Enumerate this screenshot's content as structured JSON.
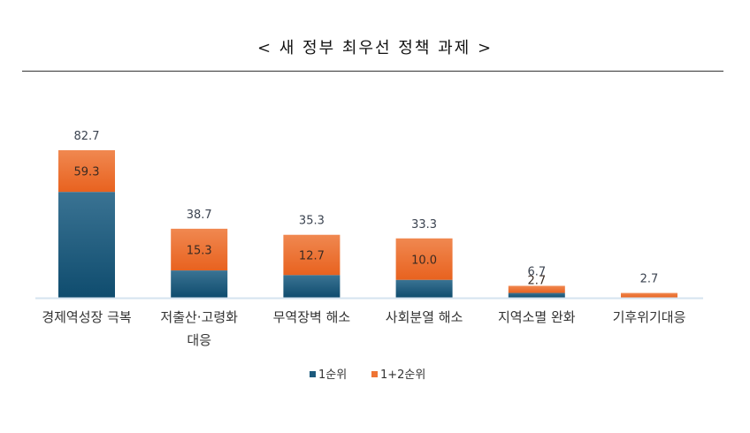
{
  "chart_data": {
    "type": "bar",
    "stacked": true,
    "title": "< 새 정부 최우선 정책 과제 >",
    "categories": [
      [
        "경제역성장 극복"
      ],
      [
        "저출산·고령화",
        "대응"
      ],
      [
        "무역장벽 해소"
      ],
      [
        "사회분열 해소"
      ],
      [
        "지역소멸 완화"
      ],
      [
        "기후위기대응"
      ]
    ],
    "series": [
      {
        "name": "1순위",
        "color": "#1c5a7d",
        "values": [
          59.3,
          15.3,
          12.7,
          10.0,
          2.7,
          0
        ],
        "labels": [
          "59.3",
          "15.3",
          "12.7",
          "10.0",
          "2.7",
          ""
        ]
      },
      {
        "name": "1+2순위",
        "color": "#ef7434",
        "totals": [
          82.7,
          38.7,
          35.3,
          33.3,
          6.7,
          2.7
        ],
        "labels": [
          "82.7",
          "38.7",
          "35.3",
          "33.3",
          "6.7",
          "2.7"
        ]
      }
    ],
    "ylim": [
      0,
      82.7
    ],
    "grid": false,
    "legend": "bottom",
    "xlabel": "",
    "ylabel": ""
  }
}
